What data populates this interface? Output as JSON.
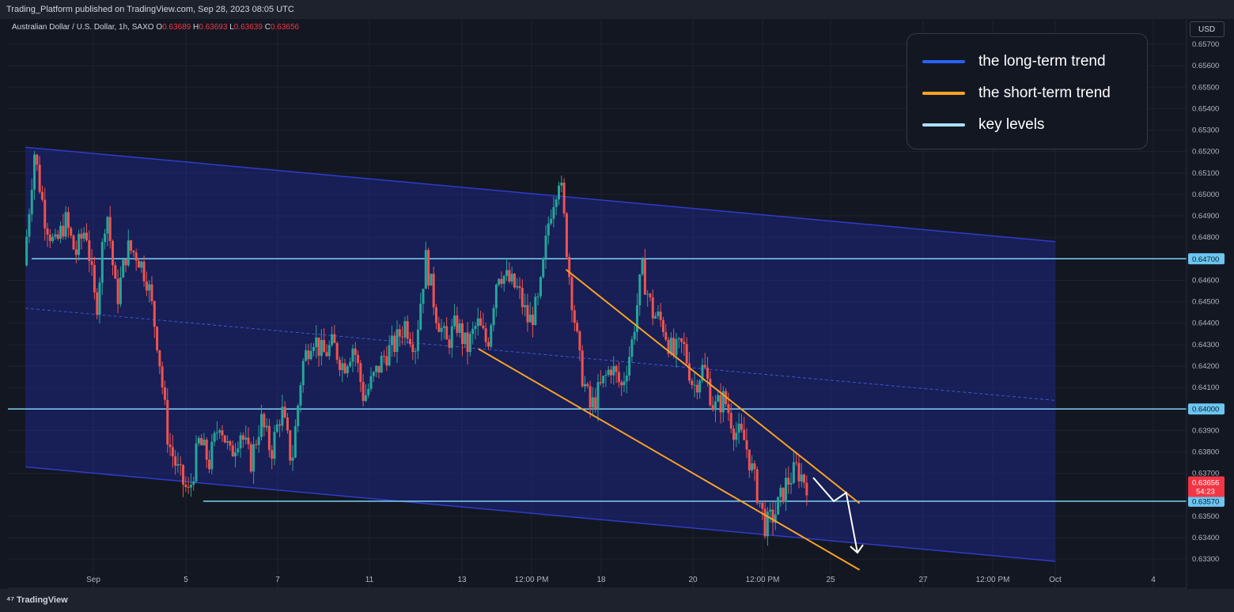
{
  "header": {
    "published": "Trading_Platform published on TradingView.com, Sep 28, 2023 08:05 UTC"
  },
  "symbol": {
    "name": "Australian Dollar / U.S. Dollar, 1h, SAXO",
    "o_label": "O",
    "o": "0.63689",
    "h_label": "H",
    "h": "0.63693",
    "l_label": "L",
    "l": "0.63639",
    "c_label": "C",
    "c": "0.63656"
  },
  "currency": "USD",
  "footer": {
    "brand": "TradingView"
  },
  "legend": [
    {
      "label": "the long-term trend",
      "color": "#2962ff"
    },
    {
      "label": "the short-term trend",
      "color": "#f7a325"
    },
    {
      "label": "key levels",
      "color": "#a8e1f5"
    }
  ],
  "colors": {
    "up": "#26a69a",
    "down": "#ef5350",
    "channel": "#2029a0",
    "level": "#7fd3f7",
    "trend": "#f7a325"
  },
  "chart_data": {
    "type": "candlestick",
    "title": "",
    "xlabel": "",
    "ylabel": "",
    "ylim": [
      0.6327,
      0.6578
    ],
    "y_ticks": [
      "0.65700",
      "0.65600",
      "0.65500",
      "0.65400",
      "0.65300",
      "0.65200",
      "0.65100",
      "0.65000",
      "0.64900",
      "0.64800",
      "0.64600",
      "0.64500",
      "0.64400",
      "0.64300",
      "0.64200",
      "0.64100",
      "0.63900",
      "0.63800",
      "0.63700",
      "0.63500",
      "0.63400",
      "0.63300"
    ],
    "x_ticks": [
      "Sep",
      "5",
      "7",
      "11",
      "13",
      "12:00 PM",
      "18",
      "20",
      "12:00 PM",
      "25",
      "27",
      "12:00 PM",
      "Oct",
      "4"
    ],
    "key_levels": [
      {
        "value": 0.647,
        "label": "0.64700"
      },
      {
        "value": 0.64,
        "label": "0.64000"
      },
      {
        "value": 0.6357,
        "label": "0.63570"
      }
    ],
    "last_price": {
      "value": 0.63656,
      "label": "0.63656",
      "countdown": "54:23"
    },
    "close_path": [
      [
        0,
        0.6467
      ],
      [
        1,
        0.652
      ],
      [
        2,
        0.649
      ],
      [
        3,
        0.6475
      ],
      [
        4,
        0.6488
      ],
      [
        5,
        0.6472
      ],
      [
        6,
        0.6485
      ],
      [
        7,
        0.6445
      ],
      [
        8,
        0.6495
      ],
      [
        9,
        0.645
      ],
      [
        10,
        0.6475
      ],
      [
        11,
        0.6472
      ],
      [
        12,
        0.646
      ],
      [
        13,
        0.643
      ],
      [
        14,
        0.6385
      ],
      [
        15,
        0.637
      ],
      [
        16,
        0.636
      ],
      [
        17,
        0.6385
      ],
      [
        18,
        0.6375
      ],
      [
        19,
        0.6395
      ],
      [
        20,
        0.6378
      ],
      [
        21,
        0.639
      ],
      [
        22,
        0.6375
      ],
      [
        23,
        0.6395
      ],
      [
        24,
        0.638
      ],
      [
        25,
        0.64
      ],
      [
        26,
        0.6375
      ],
      [
        27,
        0.642
      ],
      [
        28,
        0.6435
      ],
      [
        29,
        0.6425
      ],
      [
        30,
        0.643
      ],
      [
        31,
        0.642
      ],
      [
        32,
        0.643
      ],
      [
        33,
        0.6405
      ],
      [
        34,
        0.6415
      ],
      [
        35,
        0.6425
      ],
      [
        36,
        0.643
      ],
      [
        37,
        0.644
      ],
      [
        38,
        0.643
      ],
      [
        39,
        0.647
      ],
      [
        40,
        0.6445
      ],
      [
        41,
        0.643
      ],
      [
        42,
        0.644
      ],
      [
        43,
        0.6428
      ],
      [
        44,
        0.644
      ],
      [
        45,
        0.643
      ],
      [
        46,
        0.6465
      ],
      [
        47,
        0.646
      ],
      [
        48,
        0.6455
      ],
      [
        49,
        0.644
      ],
      [
        50,
        0.645
      ],
      [
        51,
        0.649
      ],
      [
        52,
        0.651
      ],
      [
        53,
        0.646
      ],
      [
        54,
        0.642
      ],
      [
        55,
        0.64
      ],
      [
        56,
        0.641
      ],
      [
        57,
        0.642
      ],
      [
        58,
        0.641
      ],
      [
        59,
        0.643
      ],
      [
        60,
        0.6465
      ],
      [
        61,
        0.6445
      ],
      [
        62,
        0.644
      ],
      [
        63,
        0.6425
      ],
      [
        64,
        0.643
      ],
      [
        65,
        0.641
      ],
      [
        66,
        0.642
      ],
      [
        67,
        0.64
      ],
      [
        68,
        0.6405
      ],
      [
        69,
        0.639
      ],
      [
        70,
        0.6385
      ],
      [
        71,
        0.6365
      ],
      [
        72,
        0.6345
      ],
      [
        73,
        0.6352
      ],
      [
        74,
        0.6365
      ],
      [
        75,
        0.6372
      ],
      [
        76,
        0.63656
      ]
    ],
    "long_term_channel": {
      "upper": [
        [
          0,
          0.6522
        ],
        [
          100,
          0.6478
        ]
      ],
      "lower": [
        [
          0,
          0.6373
        ],
        [
          100,
          0.6329
        ]
      ],
      "mid": [
        [
          0,
          0.6447
        ],
        [
          100,
          0.6404
        ]
      ]
    },
    "short_term_lines": [
      [
        [
          52.5,
          0.6465
        ],
        [
          81,
          0.6356
        ]
      ],
      [
        [
          44,
          0.6428
        ],
        [
          81,
          0.6325
        ]
      ]
    ],
    "projection": [
      [
        76.5,
        0.6368
      ],
      [
        78.5,
        0.6357
      ],
      [
        79.7,
        0.6361
      ],
      [
        80.8,
        0.6333
      ]
    ]
  }
}
